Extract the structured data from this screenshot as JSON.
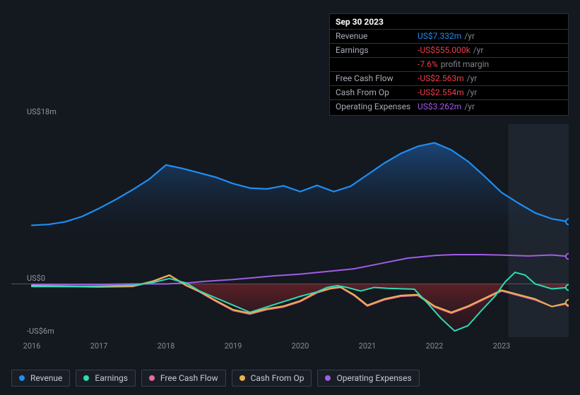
{
  "tooltip": {
    "date": "Sep 30 2023",
    "rows": [
      {
        "label": "Revenue",
        "value": "US$7.332m",
        "color": "#1f8ef1",
        "unit": "/yr"
      },
      {
        "label": "Earnings",
        "value": "-US$555.000k",
        "color": "#ef3e4a",
        "unit": "/yr"
      },
      {
        "label": "",
        "value": "-7.6%",
        "color": "#ef3e4a",
        "unit": "profit margin"
      },
      {
        "label": "Free Cash Flow",
        "value": "-US$2.563m",
        "color": "#ef3e4a",
        "unit": "/yr"
      },
      {
        "label": "Cash From Op",
        "value": "-US$2.554m",
        "color": "#ef3e4a",
        "unit": "/yr"
      },
      {
        "label": "Operating Expenses",
        "value": "US$3.262m",
        "color": "#a05de8",
        "unit": "/yr"
      }
    ]
  },
  "chart": {
    "background": "#14181f",
    "y_axis": {
      "min": -6,
      "max": 18,
      "ticks": [
        {
          "v": 18,
          "label": "US$18m"
        },
        {
          "v": 0,
          "label": "US$0"
        },
        {
          "v": -6,
          "label": "-US$6m"
        }
      ]
    },
    "x_axis": {
      "min": 2016,
      "max": 2024,
      "ticks": [
        2016,
        2017,
        2018,
        2019,
        2020,
        2021,
        2022,
        2023
      ]
    },
    "zero_line_color": "#52585f",
    "future_region_start": 2023.1,
    "future_region_color": "#1f2730",
    "marker_x": 2023.75,
    "series": [
      {
        "name": "Revenue",
        "color": "#1f8ef1",
        "width": 2.2,
        "data": [
          [
            2016.0,
            6.6
          ],
          [
            2016.25,
            6.7
          ],
          [
            2016.5,
            7.0
          ],
          [
            2016.75,
            7.6
          ],
          [
            2017.0,
            8.5
          ],
          [
            2017.25,
            9.5
          ],
          [
            2017.5,
            10.6
          ],
          [
            2017.75,
            11.8
          ],
          [
            2018.0,
            13.4
          ],
          [
            2018.25,
            13.0
          ],
          [
            2018.5,
            12.5
          ],
          [
            2018.75,
            12.0
          ],
          [
            2019.0,
            11.3
          ],
          [
            2019.25,
            10.8
          ],
          [
            2019.5,
            10.7
          ],
          [
            2019.75,
            11.05
          ],
          [
            2020.0,
            10.4
          ],
          [
            2020.25,
            11.1
          ],
          [
            2020.5,
            10.4
          ],
          [
            2020.75,
            11.0
          ],
          [
            2021.0,
            12.3
          ],
          [
            2021.25,
            13.6
          ],
          [
            2021.5,
            14.7
          ],
          [
            2021.75,
            15.5
          ],
          [
            2022.0,
            15.9
          ],
          [
            2022.25,
            15.1
          ],
          [
            2022.5,
            13.8
          ],
          [
            2022.75,
            12.1
          ],
          [
            2023.0,
            10.3
          ],
          [
            2023.25,
            9.1
          ],
          [
            2023.5,
            8.0
          ],
          [
            2023.75,
            7.33
          ],
          [
            2024.0,
            7.0
          ]
        ]
      },
      {
        "name": "Earnings",
        "color": "#2ddbb3",
        "width": 2.0,
        "fill_neg": "#5d2830",
        "data": [
          [
            2016.0,
            -0.3
          ],
          [
            2016.5,
            -0.3
          ],
          [
            2017.0,
            -0.25
          ],
          [
            2017.5,
            -0.15
          ],
          [
            2017.8,
            0.15
          ],
          [
            2018.05,
            0.6
          ],
          [
            2018.3,
            0.1
          ],
          [
            2018.5,
            -0.8
          ],
          [
            2018.75,
            -1.6
          ],
          [
            2019.0,
            -2.4
          ],
          [
            2019.25,
            -3.2
          ],
          [
            2019.5,
            -2.6
          ],
          [
            2019.75,
            -2.0
          ],
          [
            2020.0,
            -1.4
          ],
          [
            2020.25,
            -0.9
          ],
          [
            2020.4,
            -0.4
          ],
          [
            2020.55,
            -0.2
          ],
          [
            2020.7,
            -0.4
          ],
          [
            2020.9,
            -0.8
          ],
          [
            2021.1,
            -0.4
          ],
          [
            2021.3,
            -0.5
          ],
          [
            2021.5,
            -0.55
          ],
          [
            2021.7,
            -0.6
          ],
          [
            2021.9,
            -2.2
          ],
          [
            2022.1,
            -3.9
          ],
          [
            2022.3,
            -5.3
          ],
          [
            2022.5,
            -4.7
          ],
          [
            2022.7,
            -3.0
          ],
          [
            2022.9,
            -1.4
          ],
          [
            2023.05,
            0.2
          ],
          [
            2023.2,
            1.3
          ],
          [
            2023.35,
            1.0
          ],
          [
            2023.5,
            0.0
          ],
          [
            2023.75,
            -0.56
          ],
          [
            2024.0,
            -0.4
          ]
        ]
      },
      {
        "name": "Free Cash Flow",
        "color": "#e86aa0",
        "width": 2.0,
        "data": [
          [
            2016.0,
            -0.25
          ],
          [
            2016.5,
            -0.3
          ],
          [
            2017.0,
            -0.35
          ],
          [
            2017.5,
            -0.3
          ],
          [
            2017.8,
            0.25
          ],
          [
            2018.05,
            0.95
          ],
          [
            2018.3,
            -0.2
          ],
          [
            2018.5,
            -0.9
          ],
          [
            2018.75,
            -2.0
          ],
          [
            2019.0,
            -3.0
          ],
          [
            2019.25,
            -3.4
          ],
          [
            2019.5,
            -2.9
          ],
          [
            2019.75,
            -2.6
          ],
          [
            2020.0,
            -2.0
          ],
          [
            2020.25,
            -1.0
          ],
          [
            2020.45,
            -0.55
          ],
          [
            2020.6,
            -0.4
          ],
          [
            2020.8,
            -1.3
          ],
          [
            2021.0,
            -2.5
          ],
          [
            2021.25,
            -1.8
          ],
          [
            2021.5,
            -1.4
          ],
          [
            2021.75,
            -1.3
          ],
          [
            2022.0,
            -2.6
          ],
          [
            2022.25,
            -3.3
          ],
          [
            2022.5,
            -2.6
          ],
          [
            2022.75,
            -1.7
          ],
          [
            2023.0,
            -0.8
          ],
          [
            2023.25,
            -1.3
          ],
          [
            2023.5,
            -1.8
          ],
          [
            2023.75,
            -2.56
          ],
          [
            2024.0,
            -2.2
          ]
        ]
      },
      {
        "name": "Cash From Op",
        "color": "#eab24b",
        "width": 2.0,
        "data": [
          [
            2016.0,
            -0.2
          ],
          [
            2016.5,
            -0.25
          ],
          [
            2017.0,
            -0.3
          ],
          [
            2017.5,
            -0.25
          ],
          [
            2017.8,
            0.3
          ],
          [
            2018.05,
            1.0
          ],
          [
            2018.3,
            -0.15
          ],
          [
            2018.5,
            -0.85
          ],
          [
            2018.75,
            -1.9
          ],
          [
            2019.0,
            -2.9
          ],
          [
            2019.25,
            -3.3
          ],
          [
            2019.5,
            -2.8
          ],
          [
            2019.75,
            -2.5
          ],
          [
            2020.0,
            -1.9
          ],
          [
            2020.25,
            -0.9
          ],
          [
            2020.45,
            -0.5
          ],
          [
            2020.6,
            -0.35
          ],
          [
            2020.8,
            -1.2
          ],
          [
            2021.0,
            -2.4
          ],
          [
            2021.25,
            -1.7
          ],
          [
            2021.5,
            -1.3
          ],
          [
            2021.75,
            -1.2
          ],
          [
            2022.0,
            -2.5
          ],
          [
            2022.25,
            -3.2
          ],
          [
            2022.5,
            -2.5
          ],
          [
            2022.75,
            -1.6
          ],
          [
            2023.0,
            -0.7
          ],
          [
            2023.25,
            -1.2
          ],
          [
            2023.5,
            -1.7
          ],
          [
            2023.75,
            -2.55
          ],
          [
            2024.0,
            -2.1
          ]
        ]
      },
      {
        "name": "Operating Expenses",
        "color": "#a05de8",
        "width": 2.0,
        "data": [
          [
            2016.0,
            -0.05
          ],
          [
            2016.5,
            -0.05
          ],
          [
            2017.0,
            -0.05
          ],
          [
            2017.5,
            0.0
          ],
          [
            2018.0,
            0.0
          ],
          [
            2018.3,
            0.1
          ],
          [
            2018.6,
            0.3
          ],
          [
            2019.0,
            0.5
          ],
          [
            2019.3,
            0.7
          ],
          [
            2019.6,
            0.9
          ],
          [
            2020.0,
            1.1
          ],
          [
            2020.4,
            1.4
          ],
          [
            2020.8,
            1.7
          ],
          [
            2021.2,
            2.3
          ],
          [
            2021.6,
            2.9
          ],
          [
            2022.0,
            3.2
          ],
          [
            2022.3,
            3.3
          ],
          [
            2022.7,
            3.3
          ],
          [
            2023.0,
            3.25
          ],
          [
            2023.4,
            3.15
          ],
          [
            2023.75,
            3.26
          ],
          [
            2024.0,
            3.1
          ]
        ]
      }
    ],
    "legend": [
      {
        "label": "Revenue",
        "color": "#1f8ef1"
      },
      {
        "label": "Earnings",
        "color": "#2ddbb3"
      },
      {
        "label": "Free Cash Flow",
        "color": "#e86aa0"
      },
      {
        "label": "Cash From Op",
        "color": "#eab24b"
      },
      {
        "label": "Operating Expenses",
        "color": "#a05de8"
      }
    ],
    "swatch_size": 8
  }
}
